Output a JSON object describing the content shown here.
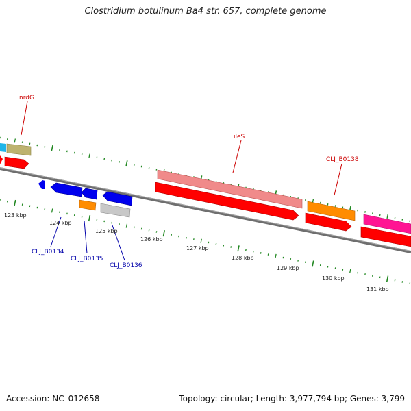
{
  "title": "Clostridium botulinum Ba4 str. 657, complete genome",
  "footer": {
    "accession": "Accession: NC_012658",
    "summary": "Topology: circular; Length: 3,977,794 bp; Genes: 3,799"
  },
  "ruler_labels": [
    "123 kbp",
    "124 kbp",
    "125 kbp",
    "126 kbp",
    "127 kbp",
    "128 kbp",
    "129 kbp",
    "130 kbp",
    "131 kbp"
  ],
  "gene_labels": {
    "nrdG": "nrdG",
    "ileS": "ileS",
    "CLJ_B0138": "CLJ_B0138",
    "CLJ_B0134": "CLJ_B0134",
    "CLJ_B0135": "CLJ_B0135",
    "CLJ_B0136": "CLJ_B0136"
  },
  "colors": {
    "forward_label": "#cc0000",
    "reverse_label": "#0000aa",
    "backbone": "#777777",
    "tick": "#228822",
    "cds": "#ff0000",
    "reverse_gene": "#0000ee"
  }
}
